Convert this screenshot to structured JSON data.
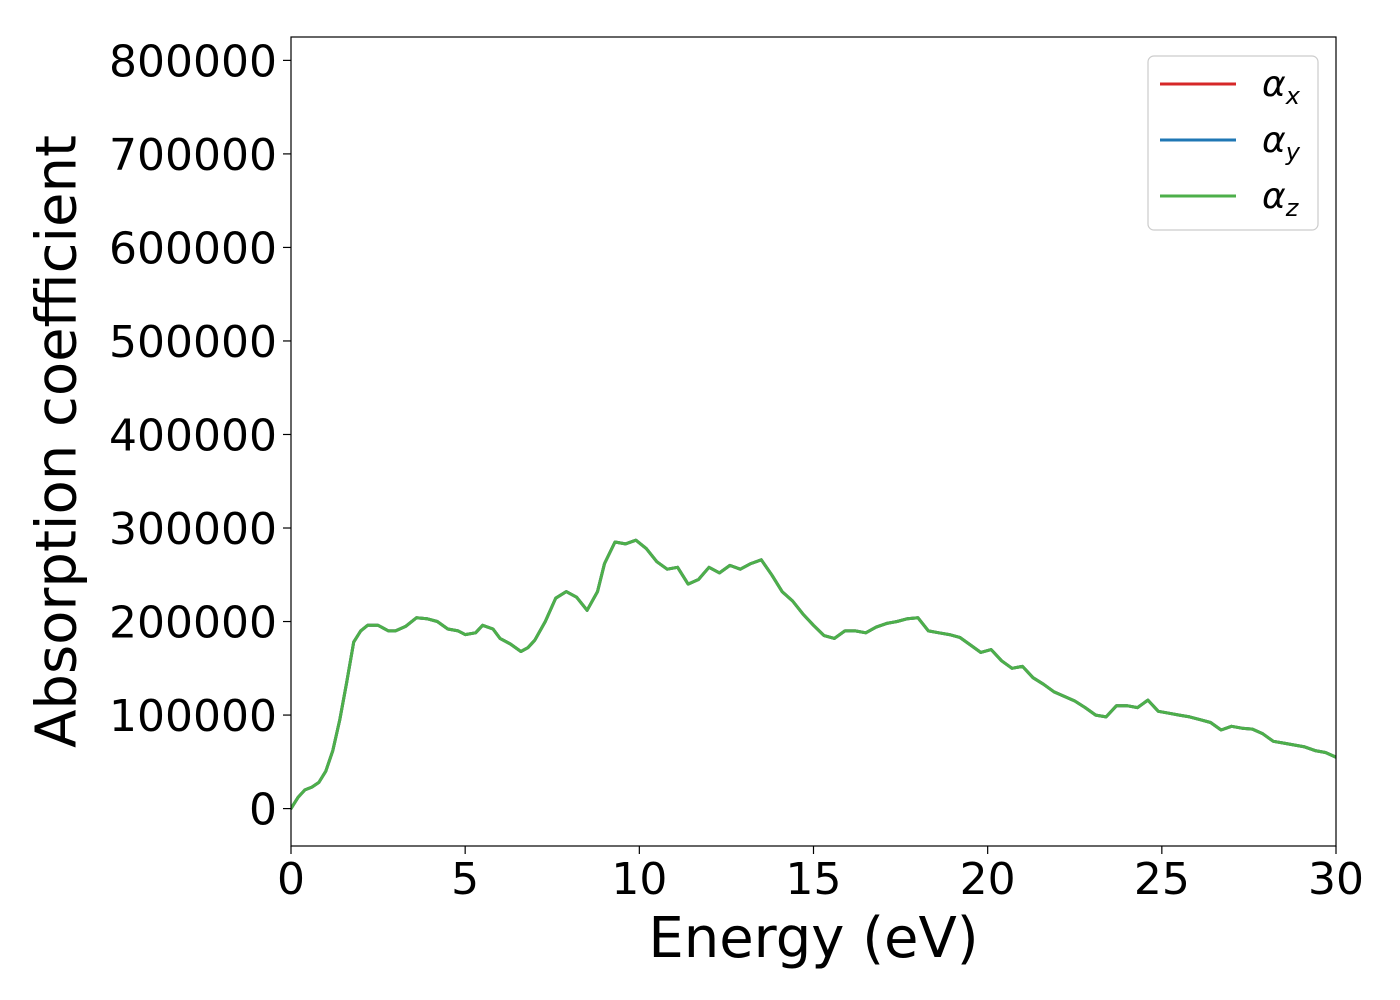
{
  "chart_data": {
    "type": "line",
    "title": "",
    "xlabel": "Energy (eV)",
    "ylabel": "Absorption coefficient",
    "xlim": [
      0,
      30
    ],
    "ylim": [
      -40000,
      825000
    ],
    "xticks": [
      0,
      5,
      10,
      15,
      20,
      25,
      30
    ],
    "yticks": [
      0,
      100000,
      200000,
      300000,
      400000,
      500000,
      600000,
      700000,
      800000
    ],
    "grid": false,
    "legend_position": "top-right",
    "x": [
      0,
      0.2,
      0.4,
      0.6,
      0.8,
      1.0,
      1.2,
      1.4,
      1.6,
      1.8,
      2.0,
      2.2,
      2.5,
      2.8,
      3.0,
      3.3,
      3.6,
      3.9,
      4.2,
      4.5,
      4.8,
      5.0,
      5.3,
      5.5,
      5.8,
      6.0,
      6.3,
      6.6,
      6.8,
      7.0,
      7.3,
      7.6,
      7.9,
      8.2,
      8.5,
      8.8,
      9.0,
      9.3,
      9.6,
      9.9,
      10.2,
      10.5,
      10.8,
      11.1,
      11.4,
      11.7,
      12.0,
      12.3,
      12.6,
      12.9,
      13.2,
      13.5,
      13.8,
      14.1,
      14.4,
      14.7,
      15.0,
      15.3,
      15.6,
      15.9,
      16.2,
      16.5,
      16.8,
      17.1,
      17.4,
      17.7,
      18.0,
      18.3,
      18.6,
      18.9,
      19.2,
      19.5,
      19.8,
      20.1,
      20.4,
      20.7,
      21.0,
      21.3,
      21.6,
      21.9,
      22.2,
      22.5,
      22.8,
      23.1,
      23.4,
      23.7,
      24.0,
      24.3,
      24.6,
      24.9,
      25.2,
      25.5,
      25.8,
      26.1,
      26.4,
      26.7,
      27.0,
      27.3,
      27.6,
      27.9,
      28.2,
      28.5,
      28.8,
      29.1,
      29.4,
      29.7,
      30.0
    ],
    "series": [
      {
        "name": "α_x",
        "symbol": "α",
        "subscript": "x",
        "color": "#d62728",
        "values": [
          0,
          12000,
          20000,
          23000,
          28000,
          40000,
          62000,
          95000,
          135000,
          178000,
          190000,
          196000,
          196000,
          190000,
          190000,
          195000,
          204000,
          203000,
          200000,
          192000,
          190000,
          186000,
          188000,
          196000,
          192000,
          182000,
          176000,
          168000,
          172000,
          180000,
          200000,
          225000,
          232000,
          226000,
          212000,
          232000,
          262000,
          285000,
          283000,
          287000,
          278000,
          264000,
          256000,
          258000,
          240000,
          245000,
          258000,
          252000,
          260000,
          256000,
          262000,
          266000,
          250000,
          232000,
          222000,
          208000,
          196000,
          185000,
          182000,
          190000,
          190000,
          188000,
          194000,
          198000,
          200000,
          203000,
          204000,
          190000,
          188000,
          186000,
          183000,
          175000,
          167000,
          170000,
          158000,
          150000,
          152000,
          140000,
          133000,
          125000,
          120000,
          115000,
          108000,
          100000,
          98000,
          110000,
          110000,
          108000,
          116000,
          104000,
          102000,
          100000,
          98000,
          95000,
          92000,
          84000,
          88000,
          86000,
          85000,
          80000,
          72000,
          70000,
          68000,
          66000,
          62000,
          60000,
          55000
        ]
      },
      {
        "name": "α_y",
        "symbol": "α",
        "subscript": "y",
        "color": "#1f77b4",
        "values": [
          0,
          12000,
          20000,
          23000,
          28000,
          40000,
          62000,
          95000,
          135000,
          178000,
          190000,
          196000,
          196000,
          190000,
          190000,
          195000,
          204000,
          203000,
          200000,
          192000,
          190000,
          186000,
          188000,
          196000,
          192000,
          182000,
          176000,
          168000,
          172000,
          180000,
          200000,
          225000,
          232000,
          226000,
          212000,
          232000,
          262000,
          285000,
          283000,
          287000,
          278000,
          264000,
          256000,
          258000,
          240000,
          245000,
          258000,
          252000,
          260000,
          256000,
          262000,
          266000,
          250000,
          232000,
          222000,
          208000,
          196000,
          185000,
          182000,
          190000,
          190000,
          188000,
          194000,
          198000,
          200000,
          203000,
          204000,
          190000,
          188000,
          186000,
          183000,
          175000,
          167000,
          170000,
          158000,
          150000,
          152000,
          140000,
          133000,
          125000,
          120000,
          115000,
          108000,
          100000,
          98000,
          110000,
          110000,
          108000,
          116000,
          104000,
          102000,
          100000,
          98000,
          95000,
          92000,
          84000,
          88000,
          86000,
          85000,
          80000,
          72000,
          70000,
          68000,
          66000,
          62000,
          60000,
          55000
        ]
      },
      {
        "name": "α_z",
        "symbol": "α",
        "subscript": "z",
        "color": "#4daf4a",
        "values": [
          0,
          12000,
          20000,
          23000,
          28000,
          40000,
          62000,
          95000,
          135000,
          178000,
          190000,
          196000,
          196000,
          190000,
          190000,
          195000,
          204000,
          203000,
          200000,
          192000,
          190000,
          186000,
          188000,
          196000,
          192000,
          182000,
          176000,
          168000,
          172000,
          180000,
          200000,
          225000,
          232000,
          226000,
          212000,
          232000,
          262000,
          285000,
          283000,
          287000,
          278000,
          264000,
          256000,
          258000,
          240000,
          245000,
          258000,
          252000,
          260000,
          256000,
          262000,
          266000,
          250000,
          232000,
          222000,
          208000,
          196000,
          185000,
          182000,
          190000,
          190000,
          188000,
          194000,
          198000,
          200000,
          203000,
          204000,
          190000,
          188000,
          186000,
          183000,
          175000,
          167000,
          170000,
          158000,
          150000,
          152000,
          140000,
          133000,
          125000,
          120000,
          115000,
          108000,
          100000,
          98000,
          110000,
          110000,
          108000,
          116000,
          104000,
          102000,
          100000,
          98000,
          95000,
          92000,
          84000,
          88000,
          86000,
          85000,
          80000,
          72000,
          70000,
          68000,
          66000,
          62000,
          60000,
          55000
        ]
      }
    ]
  }
}
